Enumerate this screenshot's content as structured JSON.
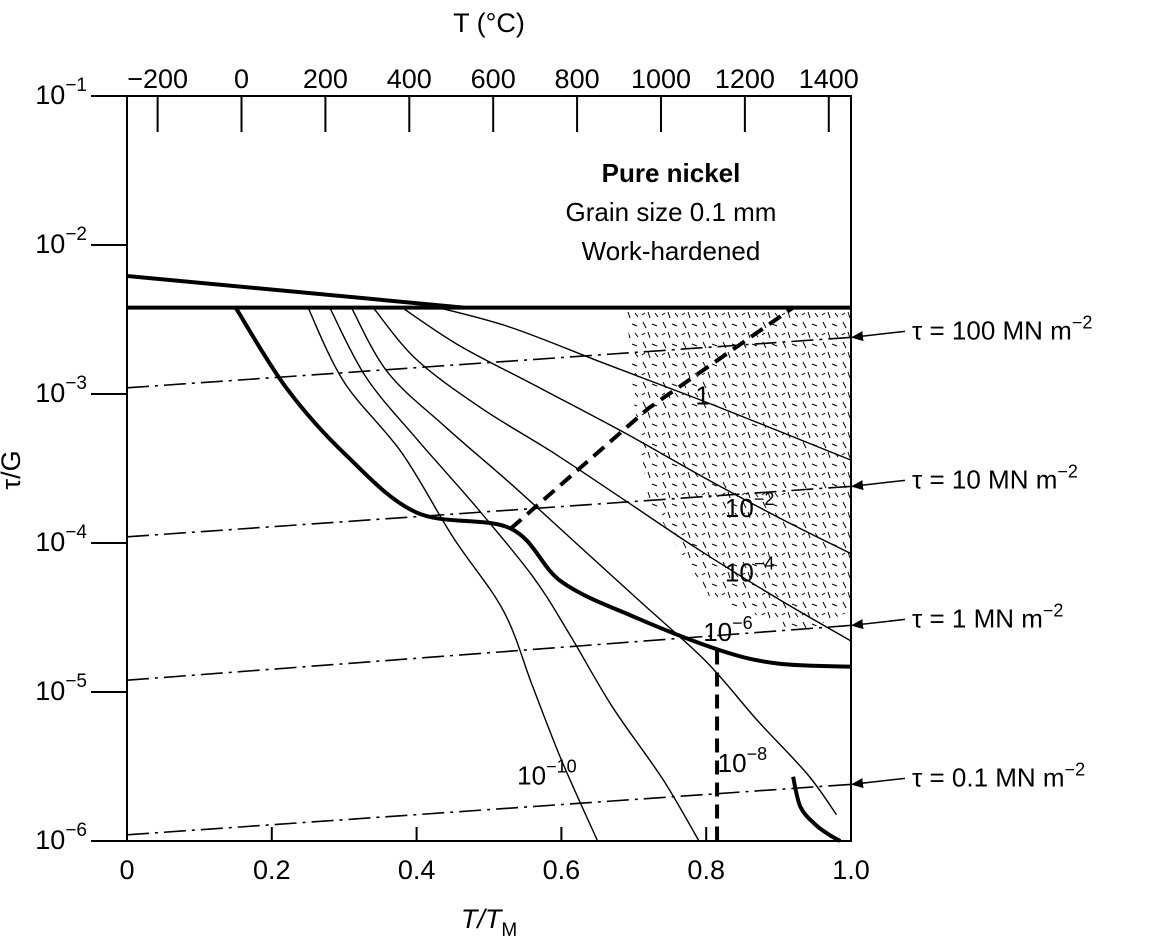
{
  "chart_data": {
    "type": "line",
    "title": "Pure nickel",
    "subtitle_lines": [
      "Grain size 0.1 mm",
      "Work-hardened"
    ],
    "xlabel": {
      "main": "T/T",
      "sub": "M"
    },
    "x2label": "T (°C)",
    "ylabel": "τ/G",
    "xlim": [
      0,
      1.0
    ],
    "ylim": [
      1e-06,
      0.1
    ],
    "yscale": "log",
    "x_ticks": [
      "0",
      "0.2",
      "0.4",
      "0.6",
      "0.8",
      "1.0"
    ],
    "x2_ticks": [
      "−200",
      "0",
      "200",
      "400",
      "600",
      "800",
      "1000",
      "1200",
      "1400"
    ],
    "y_ticks": [
      {
        "base": "10",
        "exp": "−1"
      },
      {
        "base": "10",
        "exp": "−2"
      },
      {
        "base": "10",
        "exp": "−3"
      },
      {
        "base": "10",
        "exp": "−4"
      },
      {
        "base": "10",
        "exp": "−5"
      },
      {
        "base": "10",
        "exp": "−6"
      }
    ],
    "contour_labels": [
      {
        "base": "1",
        "exp": "",
        "x": 0.795,
        "y": 0.00085
      },
      {
        "base": "10",
        "exp": "−2",
        "x": 0.86,
        "y": 0.00015
      },
      {
        "base": "10",
        "exp": "−4",
        "x": 0.86,
        "y": 5.5e-05
      },
      {
        "base": "10",
        "exp": "−6",
        "x": 0.83,
        "y": 2.2e-05
      },
      {
        "base": "10",
        "exp": "−8",
        "x": 0.85,
        "y": 2.9e-06
      },
      {
        "base": "10",
        "exp": "−10",
        "x": 0.58,
        "y": 2.4e-06
      }
    ],
    "stress_labels": [
      {
        "text": "τ = 100 MN m",
        "exp": "−2",
        "y": 0.0024
      },
      {
        "text": "τ = 10 MN m",
        "exp": "−2",
        "y": 0.00024
      },
      {
        "text": "τ = 1 MN m",
        "exp": "−2",
        "y": 2.8e-05
      },
      {
        "text": "τ = 0.1 MN m",
        "exp": "−2",
        "y": 2.4e-06
      }
    ],
    "boundaries": {
      "ideal_strength": [
        [
          0,
          0.0062
        ],
        [
          0.465,
          0.0038
        ]
      ],
      "yield_strength": [
        [
          0,
          0.0038
        ],
        [
          1.0,
          0.0038
        ]
      ],
      "power_law_boundary": [
        [
          0.15,
          0.0038
        ],
        [
          0.22,
          0.0011
        ],
        [
          0.3,
          0.0004
        ],
        [
          0.4,
          0.00016
        ],
        [
          0.53,
          0.000125
        ],
        [
          0.6,
          5.5e-05
        ],
        [
          0.7,
          3.2e-05
        ],
        [
          0.82,
          1.9e-05
        ],
        [
          0.9,
          1.55e-05
        ],
        [
          1.0,
          1.48e-05
        ]
      ],
      "diffusion_creep_boundary": [
        [
          0.92,
          2.7e-06
        ],
        [
          0.93,
          1.7e-06
        ],
        [
          0.95,
          1.3e-06
        ],
        [
          0.97,
          1.1e-06
        ],
        [
          0.985,
          1e-06
        ]
      ],
      "core_lattice_boundary": [
        [
          0.53,
          0.000125
        ],
        [
          0.72,
          0.0008
        ],
        [
          0.92,
          0.0038
        ]
      ],
      "lattice_vertical": [
        [
          0.815,
          1.9e-05
        ],
        [
          0.815,
          1e-06
        ]
      ]
    },
    "strain_rate_contours": [
      {
        "rate": "10^-10",
        "points": [
          [
            0.25,
            0.0038
          ],
          [
            0.3,
            0.0012
          ],
          [
            0.38,
            0.0004
          ],
          [
            0.45,
            0.00011
          ],
          [
            0.52,
            3.5e-05
          ],
          [
            0.56,
            1.1e-05
          ],
          [
            0.6,
            3.5e-06
          ],
          [
            0.65,
            1e-06
          ]
        ]
      },
      {
        "rate": "10^-8",
        "points": [
          [
            0.28,
            0.0038
          ],
          [
            0.33,
            0.0013
          ],
          [
            0.4,
            0.0005
          ],
          [
            0.48,
            0.00018
          ],
          [
            0.56,
            6e-05
          ],
          [
            0.61,
            2.5e-05
          ],
          [
            0.67,
            8e-06
          ],
          [
            0.74,
            2.6e-06
          ],
          [
            0.79,
            1e-06
          ]
        ]
      },
      {
        "rate": "10^-6",
        "points": [
          [
            0.31,
            0.0038
          ],
          [
            0.36,
            0.0014
          ],
          [
            0.44,
            0.0006
          ],
          [
            0.53,
            0.00025
          ],
          [
            0.62,
            0.0001
          ],
          [
            0.71,
            4e-05
          ],
          [
            0.8,
            1.6e-05
          ],
          [
            0.87,
            6.5e-06
          ],
          [
            0.94,
            2.8e-06
          ],
          [
            0.98,
            1.5e-06
          ]
        ]
      },
      {
        "rate": "10^-4",
        "points": [
          [
            0.34,
            0.0038
          ],
          [
            0.4,
            0.0017
          ],
          [
            0.49,
            0.0008
          ],
          [
            0.59,
            0.0004
          ],
          [
            0.69,
            0.00019
          ],
          [
            0.79,
            9e-05
          ],
          [
            0.9,
            4.2e-05
          ],
          [
            1.0,
            2.2e-05
          ]
        ]
      },
      {
        "rate": "10^-2",
        "points": [
          [
            0.38,
            0.0038
          ],
          [
            0.46,
            0.0021
          ],
          [
            0.57,
            0.0011
          ],
          [
            0.69,
            0.00054
          ],
          [
            0.8,
            0.00027
          ],
          [
            0.91,
            0.00014
          ],
          [
            1.0,
            8.5e-05
          ]
        ]
      },
      {
        "rate": "1",
        "points": [
          [
            0.43,
            0.0038
          ],
          [
            0.53,
            0.0028
          ],
          [
            0.66,
            0.0016
          ],
          [
            0.79,
            0.00092
          ],
          [
            0.91,
            0.00054
          ],
          [
            1.0,
            0.00036
          ]
        ]
      }
    ],
    "stress_lines": [
      {
        "points": [
          [
            0,
            0.0011
          ],
          [
            1.0,
            0.0024
          ]
        ]
      },
      {
        "points": [
          [
            0,
            0.00011
          ],
          [
            1.0,
            0.00024
          ]
        ]
      },
      {
        "points": [
          [
            0,
            1.2e-05
          ],
          [
            1.0,
            2.8e-05
          ]
        ]
      },
      {
        "points": [
          [
            0,
            1.1e-06
          ],
          [
            1.0,
            2.4e-06
          ]
        ]
      }
    ],
    "grid": false,
    "legend": "none"
  }
}
